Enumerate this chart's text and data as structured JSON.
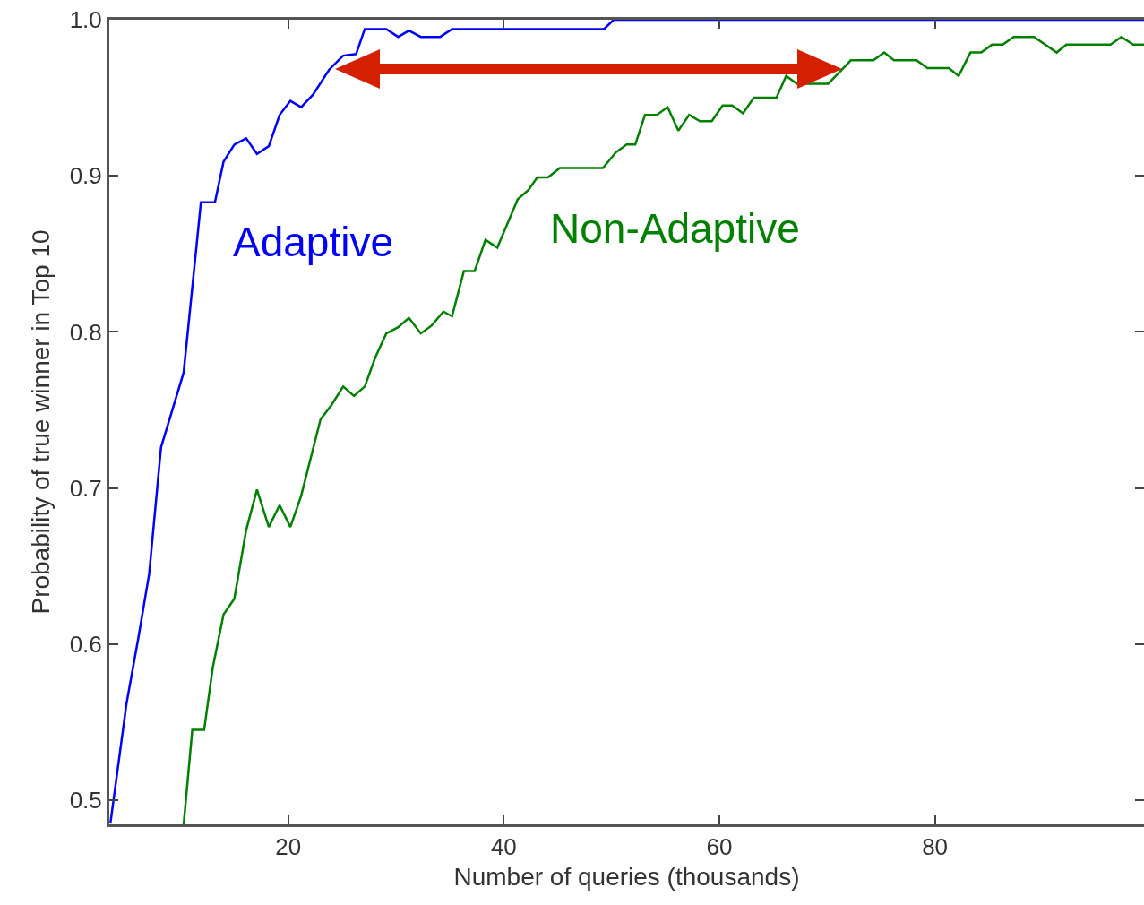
{
  "chart_data": {
    "type": "line",
    "xlabel": "Number of queries (thousands)",
    "ylabel": "Probability of true winner in Top 10",
    "xlim": [
      3.4,
      99.4
    ],
    "ylim": [
      0.4845,
      1.0
    ],
    "xticks": [
      20,
      40,
      60,
      80
    ],
    "yticks": [
      0.5,
      0.6,
      0.7,
      0.8,
      0.9,
      {
        "value": 1.0,
        "label": "1.0"
      }
    ],
    "grid": false,
    "legend": false,
    "series": [
      {
        "name": "Adaptive",
        "color": "#0000ff",
        "x": [
          3.5,
          5.0,
          6.1,
          7.1,
          8.2,
          10.3,
          11.9,
          13.2,
          14.0,
          15.0,
          16.1,
          17.1,
          18.2,
          19.2,
          20.2,
          21.2,
          22.3,
          23.8,
          25.1,
          26.3,
          27.1,
          29.1,
          30.2,
          31.2,
          32.3,
          34.1,
          35.2,
          49.3,
          50.2,
          99.4
        ],
        "values": [
          0.485,
          0.562,
          0.604,
          0.645,
          0.726,
          0.774,
          0.883,
          0.883,
          0.909,
          0.92,
          0.924,
          0.914,
          0.919,
          0.939,
          0.948,
          0.944,
          0.952,
          0.968,
          0.977,
          0.978,
          0.994,
          0.994,
          0.989,
          0.993,
          0.989,
          0.989,
          0.994,
          0.994,
          1.0,
          1.0
        ]
      },
      {
        "name": "Non-Adaptive",
        "color": "#008000",
        "x": [
          10.3,
          11.1,
          12.2,
          13.0,
          14.0,
          15.0,
          16.1,
          17.1,
          18.2,
          19.2,
          20.2,
          21.2,
          23.0,
          24.0,
          25.1,
          26.1,
          27.1,
          28.1,
          29.1,
          30.2,
          31.2,
          32.3,
          33.3,
          34.4,
          35.2,
          36.3,
          37.3,
          38.3,
          39.4,
          41.3,
          42.3,
          43.1,
          44.1,
          45.2,
          49.2,
          50.4,
          51.4,
          52.2,
          53.1,
          54.2,
          55.2,
          56.2,
          57.2,
          58.2,
          59.3,
          60.3,
          61.2,
          62.2,
          63.2,
          65.3,
          66.2,
          67.2,
          70.1,
          71.1,
          72.2,
          74.3,
          75.3,
          76.2,
          78.3,
          79.3,
          81.3,
          82.2,
          83.3,
          84.3,
          85.3,
          86.3,
          87.3,
          89.2,
          91.3,
          92.2,
          96.3,
          97.3,
          98.4,
          99.4
        ],
        "values": [
          0.4845,
          0.545,
          0.545,
          0.585,
          0.619,
          0.629,
          0.673,
          0.699,
          0.675,
          0.689,
          0.675,
          0.695,
          0.744,
          0.753,
          0.765,
          0.759,
          0.765,
          0.784,
          0.799,
          0.803,
          0.809,
          0.799,
          0.804,
          0.813,
          0.81,
          0.839,
          0.839,
          0.859,
          0.854,
          0.885,
          0.891,
          0.899,
          0.899,
          0.905,
          0.905,
          0.915,
          0.92,
          0.92,
          0.939,
          0.939,
          0.944,
          0.929,
          0.939,
          0.935,
          0.935,
          0.945,
          0.945,
          0.94,
          0.95,
          0.95,
          0.964,
          0.959,
          0.959,
          0.966,
          0.974,
          0.974,
          0.979,
          0.974,
          0.974,
          0.969,
          0.969,
          0.964,
          0.979,
          0.979,
          0.984,
          0.984,
          0.989,
          0.989,
          0.979,
          0.984,
          0.984,
          0.989,
          0.984,
          0.984
        ]
      }
    ]
  }
}
